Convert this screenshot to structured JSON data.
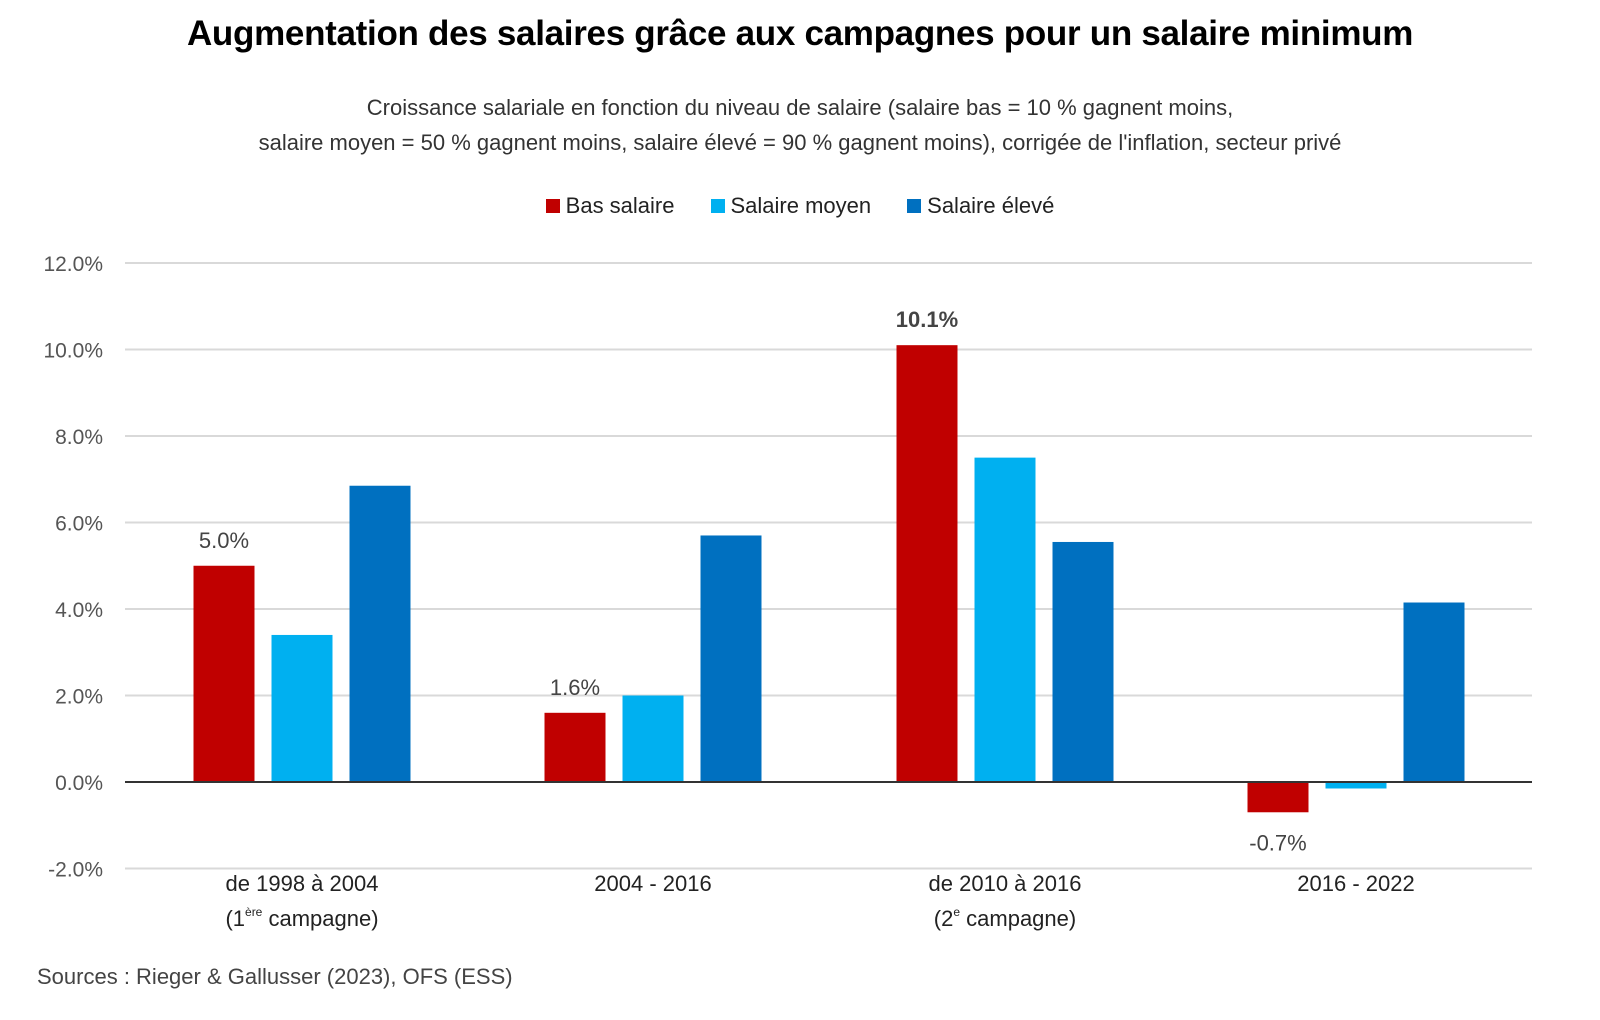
{
  "chart_data": {
    "type": "bar",
    "title": "Augmentation des salaires grâce aux campagnes pour un salaire minimum",
    "subtitle_lines": [
      "Croissance salariale en fonction du niveau de salaire (salaire bas = 10 % gagnent moins,",
      "salaire moyen = 50 % gagnent moins, salaire élevé = 90 % gagnent moins), corrigée de l'inflation, secteur privé"
    ],
    "categories": [
      {
        "line1": "de 1998 à 2004",
        "line2_prefix": "(1",
        "line2_sup": "ère",
        "line2_suffix": " campagne)"
      },
      {
        "line1": "2004 - 2016",
        "line2_prefix": "",
        "line2_sup": "",
        "line2_suffix": ""
      },
      {
        "line1": "de 2010 à 2016",
        "line2_prefix": "(2",
        "line2_sup": "e",
        "line2_suffix": " campagne)"
      },
      {
        "line1": "2016 - 2022",
        "line2_prefix": "",
        "line2_sup": "",
        "line2_suffix": ""
      }
    ],
    "series": [
      {
        "name": "Bas salaire",
        "color": "#C00000",
        "values": [
          5.0,
          1.6,
          10.1,
          -0.7
        ]
      },
      {
        "name": "Salaire moyen",
        "color": "#00B0F0",
        "values": [
          3.4,
          2.0,
          7.5,
          -0.15
        ]
      },
      {
        "name": "Salaire élevé",
        "color": "#0070C0",
        "values": [
          6.85,
          5.7,
          5.55,
          4.15
        ]
      }
    ],
    "data_labels": [
      {
        "series": 0,
        "category": 0,
        "text": "5.0%",
        "position": "above",
        "bold": false
      },
      {
        "series": 0,
        "category": 1,
        "text": "1.6%",
        "position": "above",
        "bold": false
      },
      {
        "series": 0,
        "category": 2,
        "text": "10.1%",
        "position": "above",
        "bold": true
      },
      {
        "series": 0,
        "category": 3,
        "text": "-0.7%",
        "position": "below",
        "bold": false
      }
    ],
    "xlabel": "",
    "ylabel": "",
    "ylim": [
      -2.0,
      12.0
    ],
    "yticks": [
      -2.0,
      0.0,
      2.0,
      4.0,
      6.0,
      8.0,
      10.0,
      12.0
    ],
    "ytick_labels": [
      "-2.0%",
      "0.0%",
      "2.0%",
      "4.0%",
      "6.0%",
      "8.0%",
      "10.0%",
      "12.0%"
    ],
    "grid": true,
    "legend_position": "top-center",
    "source": "Sources : Rieger & Gallusser (2023), OFS (ESS)"
  }
}
